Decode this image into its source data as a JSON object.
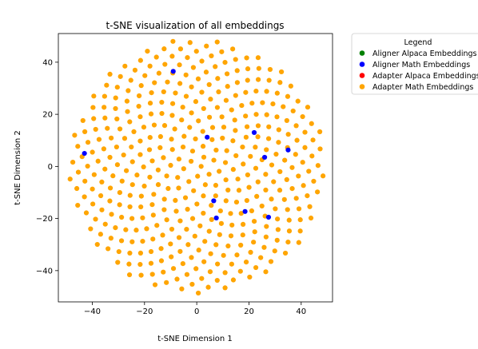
{
  "chart_data": {
    "type": "scatter",
    "title": "t-SNE visualization of all embeddings",
    "xlabel": "t-SNE Dimension 1",
    "ylabel": "t-SNE Dimension 2",
    "xlim": [
      -53,
      52
    ],
    "ylim": [
      -52,
      51
    ],
    "xticks": [
      -40,
      -20,
      0,
      20,
      40
    ],
    "yticks": [
      -40,
      -20,
      0,
      20,
      40
    ],
    "grid": false,
    "legend": {
      "title": "Legend",
      "placement": "outside-top-right",
      "entries": [
        {
          "label": "Aligner Alpaca Embeddings",
          "color": "#008000"
        },
        {
          "label": "Aligner Math Embeddings",
          "color": "#0000ff"
        },
        {
          "label": "Adapter Alpaca Embeddings",
          "color": "#ff0000"
        },
        {
          "label": "Adapter Math Embeddings",
          "color": "#ffa500"
        }
      ]
    },
    "series": [
      {
        "name": "Aligner Math Embeddings",
        "color": "#0000ff",
        "points": [
          [
            -9,
            36.5
          ],
          [
            -43,
            5
          ],
          [
            4,
            11.2
          ],
          [
            22,
            13
          ],
          [
            26,
            3.5
          ],
          [
            35,
            6.3
          ],
          [
            6.5,
            -13.2
          ],
          [
            7.5,
            -19.8
          ],
          [
            18.5,
            -17.3
          ],
          [
            27.5,
            -19.5
          ]
        ]
      },
      {
        "name": "Adapter Math Embeddings",
        "color": "#ffa500",
        "golden_spiral": {
          "count": 420,
          "max_radius": 49
        }
      }
    ]
  }
}
